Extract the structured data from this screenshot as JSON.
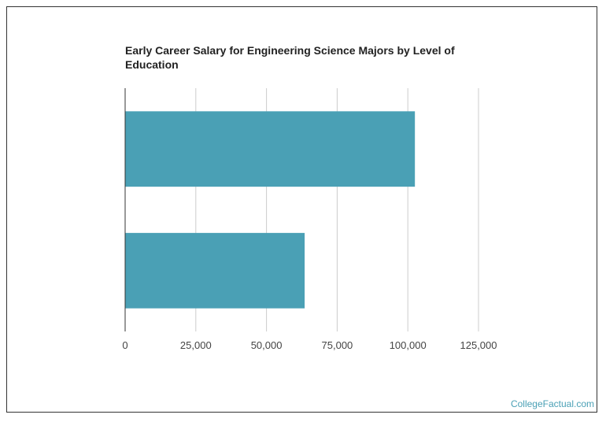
{
  "title": "Early Career Salary for Engineering Science Majors by Level of Education",
  "watermark": "CollegeFactual.com",
  "colors": {
    "bar": "#4aa0b5",
    "grid": "#cccccc",
    "axis": "#333333"
  },
  "chart_data": {
    "type": "bar",
    "orientation": "horizontal",
    "title": "Early Career Salary for Engineering Science Majors by Level of Education",
    "categories": [
      "",
      ""
    ],
    "values": [
      102500,
      63500
    ],
    "xlim": [
      0,
      125000
    ],
    "xticks": [
      0,
      25000,
      50000,
      75000,
      100000,
      125000
    ],
    "xtick_labels": [
      "0",
      "25,000",
      "50,000",
      "75,000",
      "100,000",
      "125,000"
    ],
    "xlabel": "",
    "ylabel": "",
    "grid": true,
    "legend": false
  }
}
